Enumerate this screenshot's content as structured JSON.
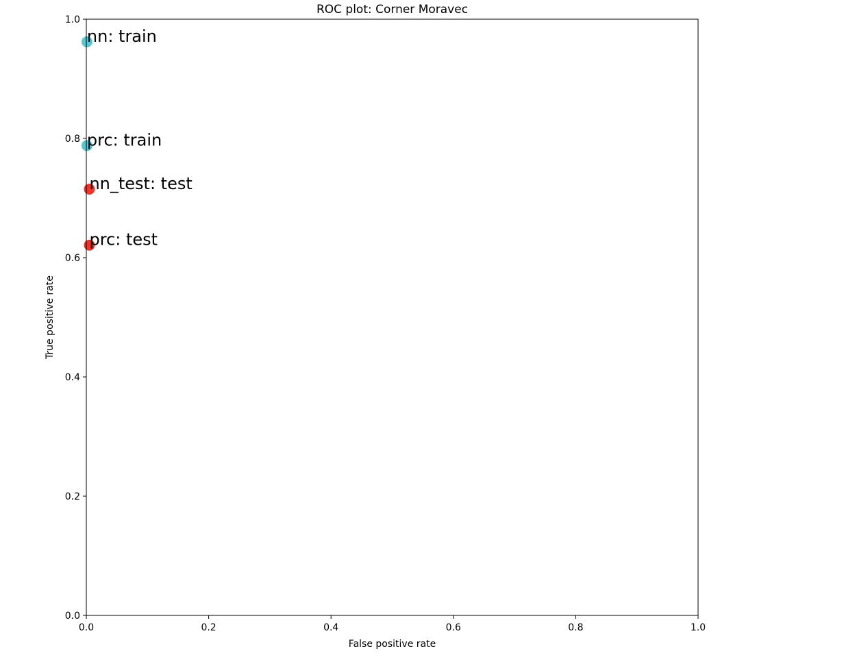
{
  "chart_data": {
    "type": "scatter",
    "title": "ROC plot: Corner Moravec",
    "xlabel": "False positive rate",
    "ylabel": "True positive rate",
    "xlim": [
      0.0,
      1.0
    ],
    "ylim": [
      0.0,
      1.0
    ],
    "x_ticks": [
      0.0,
      0.2,
      0.4,
      0.6,
      0.8,
      1.0
    ],
    "y_ticks": [
      0.0,
      0.2,
      0.4,
      0.6,
      0.8,
      1.0
    ],
    "x_tick_labels": [
      "0.0",
      "0.2",
      "0.4",
      "0.6",
      "0.8",
      "1.0"
    ],
    "y_tick_labels": [
      "0.0",
      "0.2",
      "0.4",
      "0.6",
      "0.8",
      "1.0"
    ],
    "grid": false,
    "points": [
      {
        "label": "nn: train",
        "x": 0.001,
        "y": 0.962,
        "color": "#4fc3cf"
      },
      {
        "label": "prc: train",
        "x": 0.001,
        "y": 0.788,
        "color": "#4fc3cf"
      },
      {
        "label": "nn_test: test",
        "x": 0.005,
        "y": 0.715,
        "color": "#f0281e"
      },
      {
        "label": "prc: test",
        "x": 0.005,
        "y": 0.621,
        "color": "#f0281e"
      }
    ]
  }
}
